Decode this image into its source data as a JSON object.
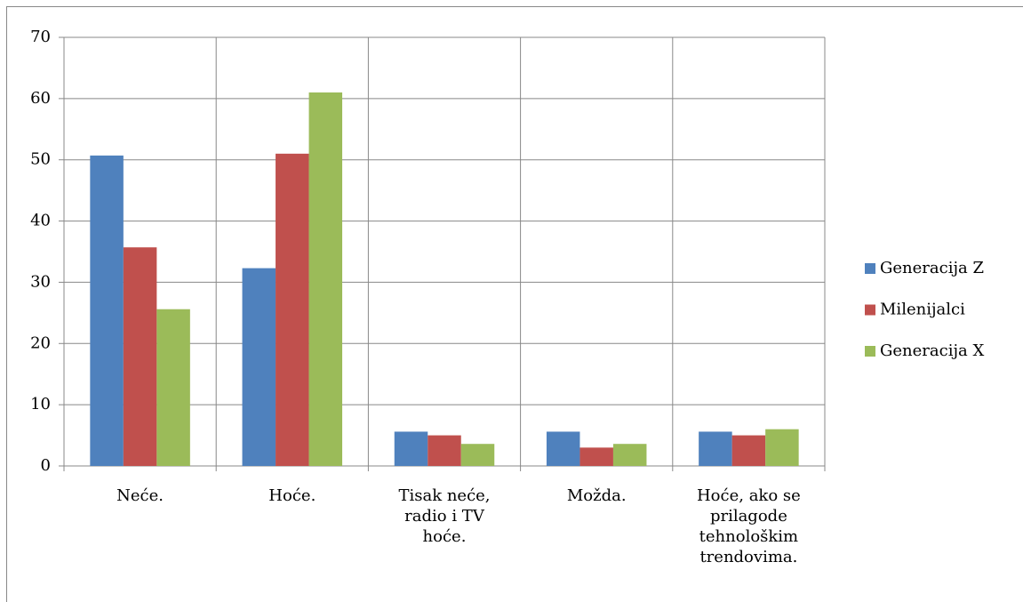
{
  "chart_data": {
    "type": "bar",
    "categories": [
      "Neće.",
      "Hoće.",
      "Tisak neće, radio i TV hoće.",
      "Možda.",
      "Hoće, ako se prilagode tehnološkim trendovima."
    ],
    "series": [
      {
        "name": "Generacija Z",
        "color": "#4f81bd",
        "values": [
          50.7,
          32.3,
          5.6,
          5.6,
          5.6
        ]
      },
      {
        "name": "Milenijalci",
        "color": "#c0504d",
        "values": [
          35.7,
          51,
          5,
          3,
          5
        ]
      },
      {
        "name": "Generacija X",
        "color": "#9bbb59",
        "values": [
          25.6,
          61,
          3.6,
          3.6,
          6
        ]
      }
    ],
    "ylim": [
      0,
      70
    ],
    "yticks": [
      0,
      10,
      20,
      30,
      40,
      50,
      60,
      70
    ],
    "grid": true,
    "legend": "right"
  }
}
